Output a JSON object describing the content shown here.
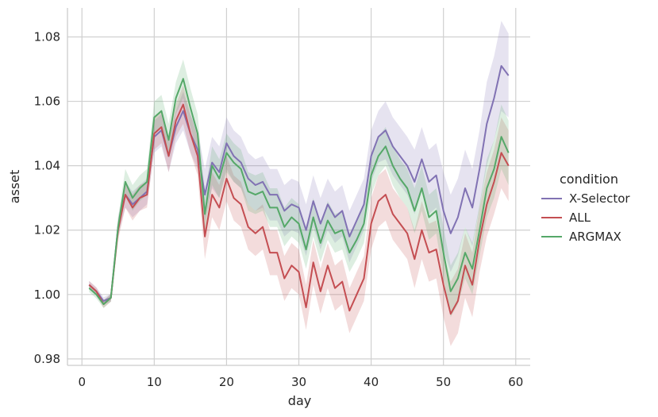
{
  "chart_data": {
    "type": "line",
    "title": "",
    "xlabel": "day",
    "ylabel": "asset",
    "xlim": [
      -2,
      62
    ],
    "ylim": [
      0.978,
      1.089
    ],
    "xticks": [
      0,
      10,
      20,
      30,
      40,
      50,
      60
    ],
    "yticks": [
      0.98,
      1.0,
      1.02,
      1.04,
      1.06,
      1.08
    ],
    "ytick_labels": [
      "0.98",
      "1.00",
      "1.02",
      "1.04",
      "1.06",
      "1.08"
    ],
    "grid": true,
    "legend": {
      "title": "condition",
      "placement": "right"
    },
    "x": [
      1,
      2,
      3,
      4,
      5,
      6,
      7,
      8,
      9,
      10,
      11,
      12,
      13,
      14,
      15,
      16,
      17,
      18,
      19,
      20,
      21,
      22,
      23,
      24,
      25,
      26,
      27,
      28,
      29,
      30,
      31,
      32,
      33,
      34,
      35,
      36,
      37,
      38,
      39,
      40,
      41,
      42,
      43,
      44,
      45,
      46,
      47,
      48,
      49,
      50,
      51,
      52,
      53,
      54,
      55,
      56,
      57,
      58,
      59
    ],
    "series": [
      {
        "name": "X-Selector",
        "color": "#8172b3",
        "values": [
          1.003,
          1.001,
          0.998,
          0.999,
          1.021,
          1.031,
          1.028,
          1.03,
          1.032,
          1.049,
          1.051,
          1.043,
          1.052,
          1.057,
          1.05,
          1.045,
          1.031,
          1.041,
          1.038,
          1.047,
          1.043,
          1.041,
          1.036,
          1.034,
          1.035,
          1.031,
          1.031,
          1.026,
          1.028,
          1.027,
          1.02,
          1.029,
          1.022,
          1.028,
          1.024,
          1.026,
          1.018,
          1.023,
          1.028,
          1.043,
          1.049,
          1.051,
          1.046,
          1.043,
          1.04,
          1.035,
          1.042,
          1.035,
          1.037,
          1.026,
          1.019,
          1.024,
          1.033,
          1.027,
          1.039,
          1.053,
          1.061,
          1.071,
          1.068
        ],
        "ci_half": [
          0.0012,
          0.0012,
          0.0012,
          0.0012,
          0.003,
          0.004,
          0.004,
          0.004,
          0.004,
          0.005,
          0.005,
          0.005,
          0.005,
          0.006,
          0.006,
          0.006,
          0.008,
          0.008,
          0.008,
          0.008,
          0.008,
          0.008,
          0.008,
          0.008,
          0.008,
          0.008,
          0.008,
          0.008,
          0.008,
          0.008,
          0.008,
          0.008,
          0.008,
          0.008,
          0.008,
          0.008,
          0.008,
          0.008,
          0.008,
          0.008,
          0.008,
          0.009,
          0.009,
          0.009,
          0.009,
          0.01,
          0.01,
          0.01,
          0.01,
          0.012,
          0.012,
          0.012,
          0.012,
          0.012,
          0.012,
          0.013,
          0.013,
          0.014,
          0.013
        ]
      },
      {
        "name": "ALL",
        "color": "#c44e52",
        "values": [
          1.003,
          1.001,
          0.997,
          0.999,
          1.02,
          1.031,
          1.027,
          1.03,
          1.031,
          1.05,
          1.052,
          1.043,
          1.054,
          1.059,
          1.05,
          1.043,
          1.018,
          1.031,
          1.027,
          1.036,
          1.03,
          1.028,
          1.021,
          1.019,
          1.021,
          1.013,
          1.013,
          1.005,
          1.009,
          1.007,
          0.996,
          1.01,
          1.001,
          1.009,
          1.002,
          1.004,
          0.995,
          1.0,
          1.005,
          1.022,
          1.029,
          1.031,
          1.025,
          1.022,
          1.019,
          1.011,
          1.02,
          1.013,
          1.014,
          1.003,
          0.994,
          0.998,
          1.009,
          1.003,
          1.017,
          1.028,
          1.035,
          1.044,
          1.04
        ],
        "ci_half": [
          0.0012,
          0.0012,
          0.0012,
          0.0012,
          0.003,
          0.004,
          0.004,
          0.004,
          0.004,
          0.005,
          0.005,
          0.005,
          0.005,
          0.006,
          0.006,
          0.006,
          0.007,
          0.007,
          0.007,
          0.007,
          0.007,
          0.007,
          0.007,
          0.007,
          0.007,
          0.007,
          0.007,
          0.007,
          0.007,
          0.007,
          0.007,
          0.007,
          0.007,
          0.007,
          0.007,
          0.007,
          0.007,
          0.007,
          0.007,
          0.008,
          0.008,
          0.008,
          0.008,
          0.008,
          0.008,
          0.009,
          0.009,
          0.009,
          0.009,
          0.01,
          0.01,
          0.01,
          0.01,
          0.01,
          0.01,
          0.01,
          0.01,
          0.011,
          0.011
        ]
      },
      {
        "name": "ARGMAX",
        "color": "#55a868",
        "values": [
          1.002,
          1.0,
          0.997,
          0.999,
          1.021,
          1.035,
          1.03,
          1.033,
          1.035,
          1.055,
          1.057,
          1.048,
          1.061,
          1.067,
          1.058,
          1.05,
          1.025,
          1.04,
          1.036,
          1.044,
          1.041,
          1.039,
          1.032,
          1.031,
          1.032,
          1.027,
          1.027,
          1.021,
          1.024,
          1.022,
          1.014,
          1.024,
          1.016,
          1.023,
          1.019,
          1.02,
          1.013,
          1.017,
          1.022,
          1.037,
          1.043,
          1.046,
          1.04,
          1.036,
          1.033,
          1.026,
          1.033,
          1.024,
          1.026,
          1.013,
          1.001,
          1.005,
          1.013,
          1.008,
          1.02,
          1.033,
          1.039,
          1.049,
          1.044
        ],
        "ci_half": [
          0.0012,
          0.0012,
          0.0012,
          0.0012,
          0.003,
          0.004,
          0.004,
          0.004,
          0.004,
          0.005,
          0.005,
          0.005,
          0.005,
          0.006,
          0.006,
          0.006,
          0.006,
          0.006,
          0.006,
          0.006,
          0.006,
          0.006,
          0.006,
          0.006,
          0.006,
          0.006,
          0.006,
          0.006,
          0.006,
          0.006,
          0.006,
          0.006,
          0.006,
          0.006,
          0.006,
          0.006,
          0.006,
          0.006,
          0.006,
          0.006,
          0.006,
          0.006,
          0.006,
          0.006,
          0.006,
          0.007,
          0.007,
          0.007,
          0.007,
          0.008,
          0.008,
          0.008,
          0.008,
          0.008,
          0.008,
          0.009,
          0.009,
          0.01,
          0.01
        ]
      }
    ]
  }
}
